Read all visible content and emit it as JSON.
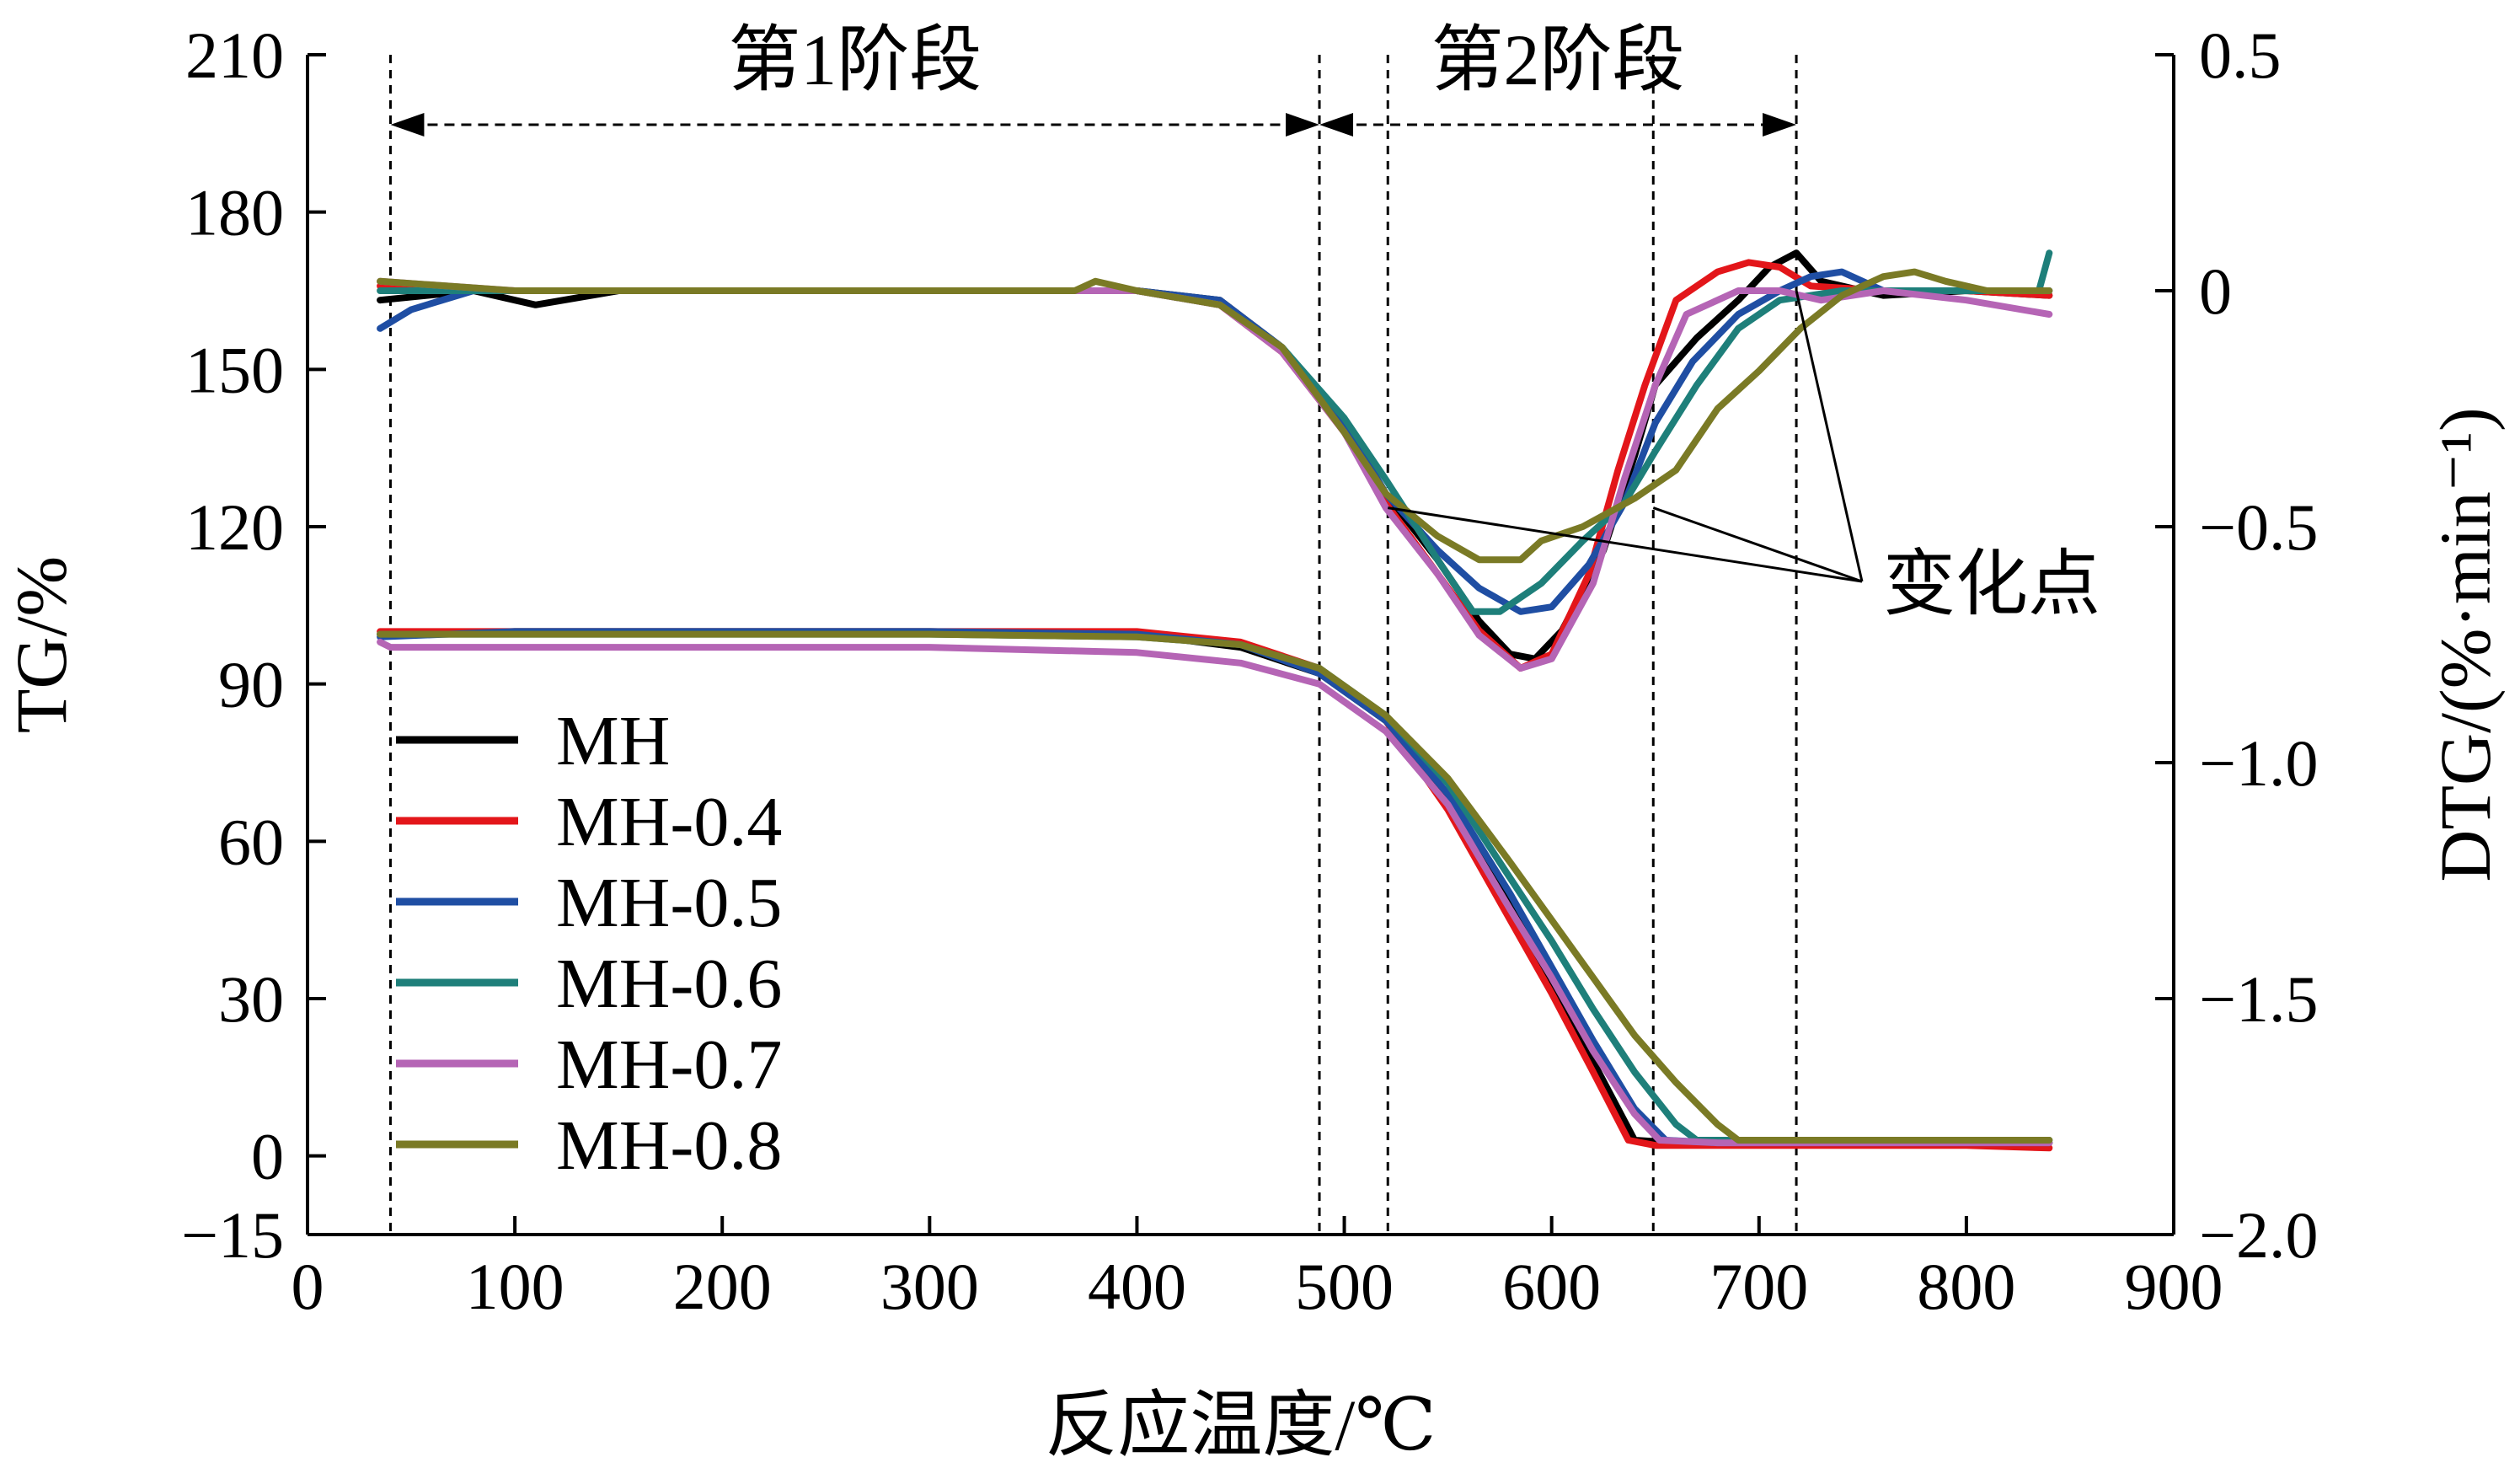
{
  "chart_data": {
    "type": "line",
    "title": "",
    "xlabel": "反应温度/℃",
    "ylabel_left": "TG/%",
    "ylabel_right": "DTG/(%·min⁻¹)",
    "xlim": [
      0,
      900
    ],
    "ylim_left": [
      -15,
      210
    ],
    "ylim_right": [
      -2.0,
      0.5
    ],
    "x_ticks": [
      0,
      100,
      200,
      300,
      400,
      500,
      600,
      700,
      800,
      900
    ],
    "y_left_ticks": [
      -15,
      0,
      30,
      60,
      90,
      120,
      150,
      180,
      210
    ],
    "y_right_ticks": [
      -2.0,
      -1.5,
      -1.0,
      -0.5,
      0,
      0.5
    ],
    "y_right_tick_labels": [
      "−2.0",
      "−1.5",
      "−1.0",
      "−0.5",
      "0",
      "0.5"
    ],
    "legend_position": "lower-left",
    "grid": false,
    "stages": [
      {
        "label": "第1阶段",
        "x_start": 40,
        "x_end": 488
      },
      {
        "label": "第2阶段",
        "x_start": 488,
        "x_end": 718
      }
    ],
    "guide_lines_x": [
      40,
      488,
      521,
      649,
      718
    ],
    "annotation": {
      "label": "变化点",
      "points": [
        [
          521,
          -0.46
        ],
        [
          649,
          -0.46
        ],
        [
          718,
          0.0
        ]
      ]
    },
    "series": [
      {
        "name": "MH",
        "color": "#000000",
        "tg": [
          [
            35,
            99.5
          ],
          [
            100,
            100
          ],
          [
            200,
            100
          ],
          [
            300,
            100
          ],
          [
            400,
            99.5
          ],
          [
            450,
            97
          ],
          [
            488,
            92
          ],
          [
            520,
            83
          ],
          [
            550,
            68
          ],
          [
            580,
            48
          ],
          [
            600,
            33
          ],
          [
            620,
            18
          ],
          [
            640,
            3
          ],
          [
            660,
            2.5
          ],
          [
            700,
            2.5
          ],
          [
            800,
            2.5
          ],
          [
            840,
            2.5
          ]
        ],
        "dtg": [
          [
            35,
            -0.02
          ],
          [
            80,
            0.0
          ],
          [
            100,
            -0.02
          ],
          [
            110,
            -0.03
          ],
          [
            150,
            0.0
          ],
          [
            300,
            0.0
          ],
          [
            400,
            0.0
          ],
          [
            440,
            -0.02
          ],
          [
            470,
            -0.12
          ],
          [
            500,
            -0.28
          ],
          [
            520,
            -0.43
          ],
          [
            545,
            -0.57
          ],
          [
            565,
            -0.7
          ],
          [
            580,
            -0.77
          ],
          [
            592,
            -0.78
          ],
          [
            605,
            -0.72
          ],
          [
            625,
            -0.55
          ],
          [
            640,
            -0.35
          ],
          [
            650,
            -0.2
          ],
          [
            670,
            -0.1
          ],
          [
            690,
            -0.02
          ],
          [
            705,
            0.05
          ],
          [
            718,
            0.08
          ],
          [
            730,
            0.02
          ],
          [
            760,
            -0.01
          ],
          [
            800,
            0.0
          ],
          [
            840,
            -0.01
          ]
        ]
      },
      {
        "name": "MH-0.4",
        "color": "#e3161a",
        "tg": [
          [
            35,
            100
          ],
          [
            100,
            100
          ],
          [
            200,
            100
          ],
          [
            300,
            100
          ],
          [
            400,
            100
          ],
          [
            450,
            98
          ],
          [
            488,
            93
          ],
          [
            520,
            83
          ],
          [
            550,
            66
          ],
          [
            580,
            45
          ],
          [
            600,
            31
          ],
          [
            620,
            16
          ],
          [
            637,
            3
          ],
          [
            650,
            2
          ],
          [
            700,
            2
          ],
          [
            800,
            2
          ],
          [
            840,
            1.5
          ]
        ],
        "dtg": [
          [
            35,
            0.01
          ],
          [
            100,
            0.0
          ],
          [
            200,
            0.0
          ],
          [
            300,
            0.0
          ],
          [
            400,
            0.0
          ],
          [
            440,
            -0.03
          ],
          [
            470,
            -0.13
          ],
          [
            500,
            -0.3
          ],
          [
            520,
            -0.45
          ],
          [
            545,
            -0.6
          ],
          [
            565,
            -0.72
          ],
          [
            585,
            -0.8
          ],
          [
            600,
            -0.77
          ],
          [
            618,
            -0.6
          ],
          [
            632,
            -0.38
          ],
          [
            645,
            -0.2
          ],
          [
            660,
            -0.02
          ],
          [
            680,
            0.04
          ],
          [
            695,
            0.06
          ],
          [
            710,
            0.05
          ],
          [
            725,
            0.01
          ],
          [
            760,
            0.0
          ],
          [
            800,
            0.0
          ],
          [
            840,
            -0.01
          ]
        ]
      },
      {
        "name": "MH-0.5",
        "color": "#1f4ea3",
        "tg": [
          [
            35,
            99
          ],
          [
            100,
            100
          ],
          [
            200,
            100
          ],
          [
            300,
            100
          ],
          [
            400,
            99.5
          ],
          [
            450,
            97.5
          ],
          [
            488,
            92
          ],
          [
            520,
            83
          ],
          [
            550,
            69
          ],
          [
            580,
            50
          ],
          [
            600,
            36
          ],
          [
            620,
            22
          ],
          [
            640,
            9
          ],
          [
            655,
            3
          ],
          [
            680,
            2.5
          ],
          [
            800,
            2.5
          ],
          [
            840,
            2.5
          ]
        ],
        "dtg": [
          [
            35,
            -0.08
          ],
          [
            50,
            -0.04
          ],
          [
            80,
            0.0
          ],
          [
            100,
            0.0
          ],
          [
            200,
            0.0
          ],
          [
            300,
            0.0
          ],
          [
            400,
            0.0
          ],
          [
            440,
            -0.02
          ],
          [
            470,
            -0.12
          ],
          [
            500,
            -0.28
          ],
          [
            520,
            -0.43
          ],
          [
            545,
            -0.55
          ],
          [
            565,
            -0.63
          ],
          [
            585,
            -0.68
          ],
          [
            600,
            -0.67
          ],
          [
            618,
            -0.58
          ],
          [
            635,
            -0.45
          ],
          [
            650,
            -0.28
          ],
          [
            668,
            -0.15
          ],
          [
            690,
            -0.05
          ],
          [
            710,
            0.0
          ],
          [
            725,
            0.03
          ],
          [
            740,
            0.04
          ],
          [
            760,
            0.0
          ],
          [
            800,
            0.0
          ],
          [
            840,
            0.0
          ]
        ]
      },
      {
        "name": "MH-0.6",
        "color": "#1e7f7a",
        "tg": [
          [
            35,
            99.5
          ],
          [
            100,
            99.5
          ],
          [
            200,
            99.5
          ],
          [
            300,
            99.5
          ],
          [
            400,
            99
          ],
          [
            450,
            97.5
          ],
          [
            488,
            93
          ],
          [
            520,
            84
          ],
          [
            550,
            71
          ],
          [
            580,
            53
          ],
          [
            600,
            41
          ],
          [
            620,
            28
          ],
          [
            640,
            16
          ],
          [
            660,
            6
          ],
          [
            670,
            3
          ],
          [
            700,
            3
          ],
          [
            800,
            3
          ],
          [
            840,
            3
          ]
        ],
        "dtg": [
          [
            35,
            0.0
          ],
          [
            100,
            0.0
          ],
          [
            200,
            0.0
          ],
          [
            300,
            0.0
          ],
          [
            400,
            0.0
          ],
          [
            440,
            -0.03
          ],
          [
            470,
            -0.12
          ],
          [
            500,
            -0.27
          ],
          [
            520,
            -0.4
          ],
          [
            545,
            -0.57
          ],
          [
            562,
            -0.68
          ],
          [
            575,
            -0.68
          ],
          [
            595,
            -0.62
          ],
          [
            615,
            -0.53
          ],
          [
            635,
            -0.45
          ],
          [
            650,
            -0.34
          ],
          [
            670,
            -0.2
          ],
          [
            690,
            -0.08
          ],
          [
            710,
            -0.02
          ],
          [
            740,
            0.0
          ],
          [
            800,
            0.0
          ],
          [
            835,
            0.0
          ],
          [
            840,
            0.08
          ]
        ]
      },
      {
        "name": "MH-0.7",
        "color": "#b565b5",
        "tg": [
          [
            35,
            98
          ],
          [
            40,
            97
          ],
          [
            100,
            97
          ],
          [
            200,
            97
          ],
          [
            300,
            97
          ],
          [
            400,
            96
          ],
          [
            450,
            94
          ],
          [
            488,
            90
          ],
          [
            520,
            81
          ],
          [
            550,
            67
          ],
          [
            580,
            47
          ],
          [
            600,
            34
          ],
          [
            620,
            20
          ],
          [
            640,
            8
          ],
          [
            652,
            3
          ],
          [
            680,
            2.5
          ],
          [
            800,
            2.5
          ],
          [
            840,
            2.5
          ]
        ],
        "dtg": [
          [
            35,
            0.02
          ],
          [
            100,
            0.0
          ],
          [
            200,
            0.0
          ],
          [
            300,
            0.0
          ],
          [
            400,
            0.0
          ],
          [
            440,
            -0.03
          ],
          [
            470,
            -0.13
          ],
          [
            500,
            -0.3
          ],
          [
            520,
            -0.46
          ],
          [
            545,
            -0.6
          ],
          [
            565,
            -0.73
          ],
          [
            585,
            -0.8
          ],
          [
            600,
            -0.78
          ],
          [
            620,
            -0.62
          ],
          [
            635,
            -0.4
          ],
          [
            650,
            -0.2
          ],
          [
            665,
            -0.05
          ],
          [
            690,
            0.0
          ],
          [
            710,
            0.0
          ],
          [
            730,
            -0.02
          ],
          [
            760,
            0.0
          ],
          [
            800,
            -0.02
          ],
          [
            840,
            -0.05
          ]
        ]
      },
      {
        "name": "MH-0.8",
        "color": "#7a7a25",
        "tg": [
          [
            35,
            99.5
          ],
          [
            100,
            99.5
          ],
          [
            200,
            99.5
          ],
          [
            300,
            99.5
          ],
          [
            400,
            99
          ],
          [
            450,
            97.5
          ],
          [
            488,
            93
          ],
          [
            520,
            84
          ],
          [
            550,
            72
          ],
          [
            580,
            56
          ],
          [
            600,
            45
          ],
          [
            620,
            34
          ],
          [
            640,
            23
          ],
          [
            660,
            14
          ],
          [
            680,
            6
          ],
          [
            690,
            3
          ],
          [
            720,
            3
          ],
          [
            800,
            3
          ],
          [
            840,
            3
          ]
        ],
        "dtg": [
          [
            35,
            0.02
          ],
          [
            100,
            0.0
          ],
          [
            200,
            0.0
          ],
          [
            300,
            0.0
          ],
          [
            370,
            0.0
          ],
          [
            380,
            0.02
          ],
          [
            400,
            0.0
          ],
          [
            440,
            -0.03
          ],
          [
            470,
            -0.12
          ],
          [
            500,
            -0.3
          ],
          [
            520,
            -0.43
          ],
          [
            545,
            -0.52
          ],
          [
            565,
            -0.57
          ],
          [
            585,
            -0.57
          ],
          [
            595,
            -0.53
          ],
          [
            615,
            -0.5
          ],
          [
            640,
            -0.44
          ],
          [
            660,
            -0.38
          ],
          [
            680,
            -0.25
          ],
          [
            700,
            -0.17
          ],
          [
            720,
            -0.08
          ],
          [
            740,
            -0.01
          ],
          [
            760,
            0.03
          ],
          [
            775,
            0.04
          ],
          [
            790,
            0.02
          ],
          [
            810,
            0.0
          ],
          [
            840,
            0.0
          ]
        ]
      }
    ]
  }
}
